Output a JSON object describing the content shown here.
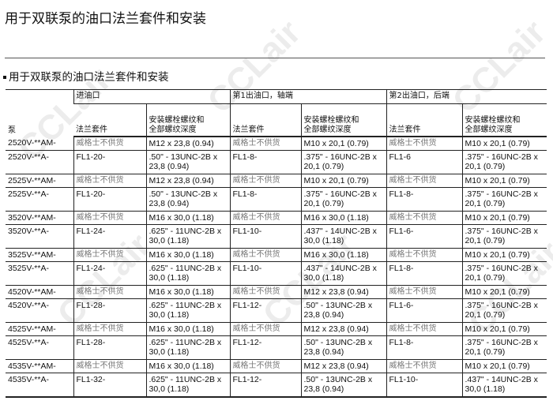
{
  "page_title": "用于双联泵的油口法兰套件和安装",
  "section_title": "用于双联泵的油口法兰套件和安装",
  "watermark": "CCLair",
  "table": {
    "pump_header": "泵",
    "groups": [
      "进油口",
      "第1出油口，轴端",
      "第2出油口，后端"
    ],
    "sub_headers": [
      "法兰套件",
      "安装螺栓螺纹和\n全部螺纹深度"
    ],
    "rows": [
      [
        "2520V-**AM-",
        "威格士不供货",
        "M12 x 23,8 (0.94)",
        "威格士不供货",
        "M10 x 20,1 (0.79)",
        "威格士不供货",
        "M10 x 20,1 (0.79)"
      ],
      [
        "2520V-**A-",
        "FL1-20-",
        ".50\" - 13UNC-2B x 23,8 (0.94)",
        "FL1-8-",
        ".375\" - 16UNC-2B x 20,1 (0.79)",
        "FL1-6",
        ".375\" - 16UNC-2B x 20,1 (0.79)"
      ],
      [
        "2525V-**AM-",
        "威格士不供货",
        "M12 x 23,8 (0.94)",
        "威格士不供货",
        "M10 x 20,1 (0.79)",
        "威格士不供货",
        "M10 x 20,1 (0.79)"
      ],
      [
        "2525V-**A-",
        "FL1-20-",
        ".50\" - 13UNC-2B x 23,8 (0.94)",
        "FL1-8-",
        ".375\" - 16UNC-2B x 20,1 (0.79)",
        "FL1-8-",
        ".375\" - 16UNC-2B x 20,1 (0.79)"
      ],
      [
        "3520V-**AM-",
        "威格士不供货",
        "M16 x 30,0 (1.18)",
        "威格士不供货",
        "M16 x 30,0 (1.18)",
        "威格士不供货",
        "M10 x 20,1 (0.79)"
      ],
      [
        "3520V-**A-",
        "FL1-24-",
        ".625\" - 11UNC-2B x 30,0 (1.18)",
        "FL1-10-",
        ".437\" - 14UNC-2B x 30,0 (1.18)",
        "FL1-6-",
        ".375\" - 16UNC-2B x 20,1 (0.79)"
      ],
      [
        "3525V-**AM-",
        "威格士不供货",
        "M16 x 30,0 (1.18)",
        "威格士不供货",
        "M16 x 30,0 (1.18)",
        "威格士不供货",
        "M10 x 20,1 (0.79)"
      ],
      [
        "3525V-**A-",
        "FL1-24-",
        ".625\" - 11UNC-2B x 30,0 (1.18)",
        "FL1-10-",
        ".437\" - 14UNC-2B x 30,0 (1.18)",
        "FL1-8-",
        ".375\" - 16UNC-2B x 20,1 (0.79)"
      ],
      [
        "4520V-**AM-",
        "威格士不供货",
        "M16 x 30,0 (1.18)",
        "威格士不供货",
        "M12 x 23,8 (0.94)",
        "威格士不供货",
        "M10 x 20,1 (0.79)"
      ],
      [
        "4520V-**A-",
        "FL1-28-",
        ".625\" - 11UNC-2B x 30,0 (1.18)",
        "FL1-12-",
        ".50\" - 13UNC-2B x 23,8 (0.94)",
        "FL1-6-",
        ".375\" - 16UNC-2B x 20,1 (0.79)"
      ],
      [
        "4525V-**AM-",
        "威格士不供货",
        "M16 x 30,0 (1.18)",
        "威格士不供货",
        "M12 x 23,8 (0.94)",
        "威格士不供货",
        "M10 x 20,1 (0.79)"
      ],
      [
        "4525V-**A-",
        "FL1-28-",
        ".625\" - 11UNC-2B x 30,0 (1.18)",
        "FL1-12-",
        ".50\" - 13UNC-2B x 23,8 (0.94)",
        "FL1-8-",
        ".375\" - 16UNC-2B x 20,1 (0.79)"
      ],
      [
        "4535V-**AM-",
        "威格士不供货",
        "M16 x 30,0 (1.18)",
        "威格士不供货",
        "M12 x 23,8 (0.94)",
        "威格士不供货",
        "M10 x 20,1 (0.79)"
      ],
      [
        "4535V-**A-",
        "FL1-32-",
        ".625\" - 11UNC-2B x 30,0 (1.18)",
        "FL1-12-",
        ".50\" - 13UNC-2B x 23,8 (0.94)",
        "FL1-10-",
        ".437\" - 14UNC-2B x 30,0 (1.18)"
      ]
    ]
  }
}
